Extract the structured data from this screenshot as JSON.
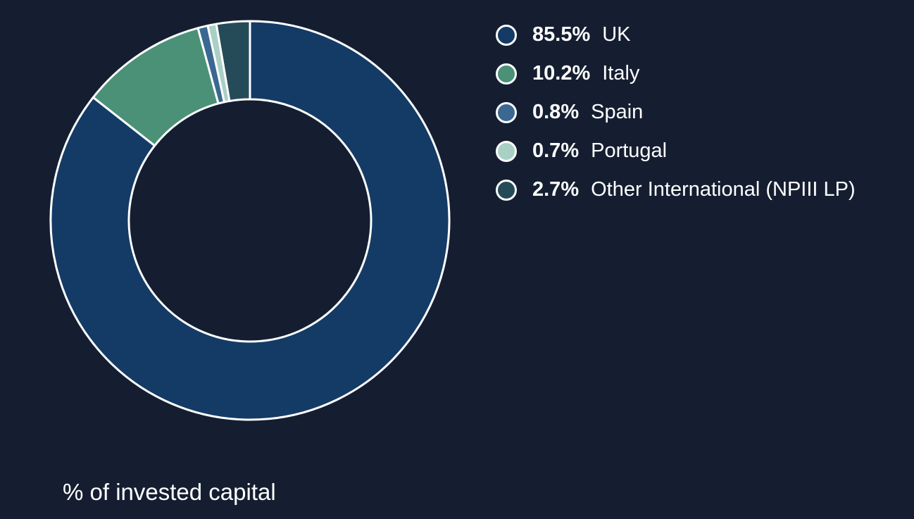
{
  "chart_data": {
    "type": "pie",
    "categories": [
      "UK",
      "Italy",
      "Spain",
      "Portugal",
      "Other International (NPIII LP)"
    ],
    "values": [
      85.5,
      10.2,
      0.8,
      0.7,
      2.7
    ],
    "value_labels": [
      "85.5%",
      "10.2%",
      "0.8%",
      "0.7%",
      "2.7%"
    ],
    "colors": [
      "#143b66",
      "#4a9177",
      "#3a6890",
      "#a9d0c5",
      "#264b58"
    ],
    "donut": true,
    "legend_position": "right",
    "caption": "% of invested capital"
  },
  "colors": {
    "background": "#151e31",
    "slice_border": "#ffffff",
    "text": "#ffffff"
  }
}
